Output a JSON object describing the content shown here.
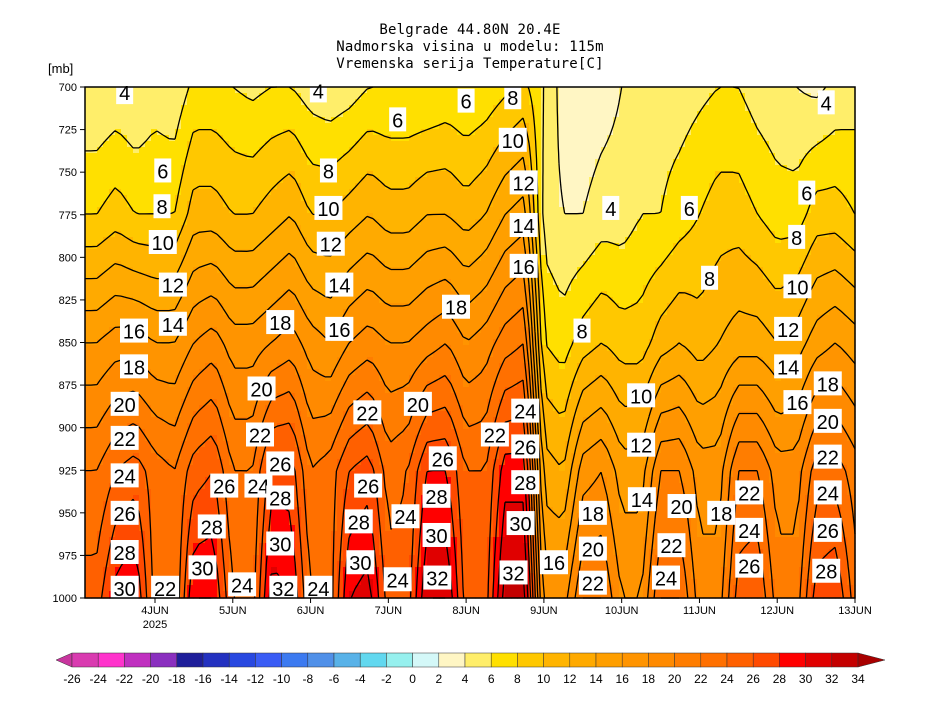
{
  "chart_data": {
    "type": "heatmap",
    "subtype": "time-height filled contour",
    "title_lines": [
      "Belgrade  44.80N 20.4E",
      "Nadmorska visina u modelu: 115m",
      "Vremenska serija Temperature[C]"
    ],
    "ylabel": "[mb]",
    "xlabel": "",
    "y_ticks": [
      700,
      725,
      750,
      775,
      800,
      825,
      850,
      875,
      900,
      925,
      950,
      975,
      1000
    ],
    "ylim": [
      700,
      1000
    ],
    "y_inverted": true,
    "time_units": "days since 4JUN2025 00Z",
    "xlim": [
      -0.9,
      9.0
    ],
    "x_ticks": [
      {
        "t": 0,
        "label": "4JUN",
        "sublabel": "2025"
      },
      {
        "t": 1,
        "label": "5JUN"
      },
      {
        "t": 2,
        "label": "6JUN"
      },
      {
        "t": 3,
        "label": "7JUN"
      },
      {
        "t": 4,
        "label": "8JUN"
      },
      {
        "t": 5,
        "label": "9JUN"
      },
      {
        "t": 6,
        "label": "10JUN"
      },
      {
        "t": 7,
        "label": "11JUN"
      },
      {
        "t": 8,
        "label": "12JUN"
      },
      {
        "t": 9,
        "label": "13JUN"
      }
    ],
    "levels": [
      700,
      775,
      850,
      925,
      1000
    ],
    "times": [
      -1.0,
      -0.75,
      -0.5,
      -0.25,
      0,
      0.25,
      0.5,
      0.75,
      1,
      1.25,
      1.5,
      1.75,
      2,
      2.25,
      2.5,
      2.75,
      3,
      3.25,
      3.5,
      3.75,
      4,
      4.25,
      4.5,
      4.75,
      5,
      5.25,
      5.5,
      5.75,
      6,
      6.25,
      6.5,
      6.75,
      7,
      7.25,
      7.5,
      7.75,
      8,
      8.25,
      8.5,
      8.75,
      9
    ],
    "temperature": [
      [
        4,
        8,
        16,
        22,
        25
      ],
      [
        4,
        8,
        16,
        22,
        25
      ],
      [
        4.5,
        9,
        17,
        24,
        29
      ],
      [
        4,
        8,
        17,
        25,
        30
      ],
      [
        5,
        8,
        16,
        23,
        23
      ],
      [
        4.5,
        8,
        16,
        22,
        22
      ],
      [
        6.5,
        11,
        18,
        25,
        30
      ],
      [
        6.5,
        11,
        19,
        26,
        30
      ],
      [
        6,
        10,
        17,
        22,
        24
      ],
      [
        5.5,
        10,
        17,
        22,
        23
      ],
      [
        6,
        11,
        18,
        27,
        31
      ],
      [
        6,
        12,
        19,
        27,
        30
      ],
      [
        5,
        10,
        17,
        22,
        24
      ],
      [
        4.5,
        10,
        16,
        23,
        23
      ],
      [
        5,
        11,
        18,
        26,
        30
      ],
      [
        6,
        12,
        19,
        27,
        31
      ],
      [
        6,
        11,
        18,
        23,
        25
      ],
      [
        6,
        11,
        18,
        24,
        25
      ],
      [
        6,
        12,
        19,
        28,
        32
      ],
      [
        6.5,
        12,
        20,
        28,
        32
      ],
      [
        6,
        11,
        18,
        24,
        25
      ],
      [
        6.5,
        12,
        19,
        24,
        25
      ],
      [
        7.5,
        14,
        21,
        29,
        33
      ],
      [
        8.5,
        15,
        22,
        29,
        33
      ],
      [
        6,
        5,
        8,
        13,
        17
      ],
      [
        3,
        4,
        7,
        12,
        17
      ],
      [
        2.5,
        4,
        9,
        17,
        22
      ],
      [
        3,
        5,
        10,
        18,
        22
      ],
      [
        4,
        5,
        9,
        15,
        18
      ],
      [
        5,
        6,
        9,
        15,
        18
      ],
      [
        5,
        6,
        11,
        20,
        24
      ],
      [
        5,
        7,
        12,
        20,
        24
      ],
      [
        5.5,
        8,
        11,
        17,
        19
      ],
      [
        6,
        9,
        12,
        17,
        19
      ],
      [
        6,
        9,
        13,
        22,
        25
      ],
      [
        5,
        8,
        13,
        22,
        26
      ],
      [
        4.5,
        7,
        12,
        19,
        21
      ],
      [
        4,
        7,
        13,
        19,
        21
      ],
      [
        3.5,
        9,
        15,
        23,
        27
      ],
      [
        4.5,
        9,
        16,
        23,
        28
      ],
      [
        5,
        8,
        15,
        21,
        23
      ]
    ],
    "contour_levels": [
      4,
      6,
      8,
      10,
      12,
      14,
      16,
      18,
      20,
      22,
      24,
      26,
      28,
      30,
      32
    ],
    "contour_labels": [
      {
        "v": "4",
        "t": -0.39,
        "p": 703
      },
      {
        "v": "4",
        "t": 2.1,
        "p": 702
      },
      {
        "v": "6",
        "t": 4.0,
        "p": 708
      },
      {
        "v": "8",
        "t": 4.6,
        "p": 706
      },
      {
        "v": "6",
        "t": 3.12,
        "p": 719
      },
      {
        "v": "6",
        "t": 0.1,
        "p": 749
      },
      {
        "v": "8",
        "t": 2.23,
        "p": 749
      },
      {
        "v": "10",
        "t": 4.6,
        "p": 731
      },
      {
        "v": "12",
        "t": 4.74,
        "p": 756
      },
      {
        "v": "4",
        "t": 5.86,
        "p": 771
      },
      {
        "v": "6",
        "t": 6.87,
        "p": 771
      },
      {
        "v": "8",
        "t": 0.09,
        "p": 770
      },
      {
        "v": "10",
        "t": 2.23,
        "p": 771
      },
      {
        "v": "14",
        "t": 4.74,
        "p": 781
      },
      {
        "v": "10",
        "t": 0.1,
        "p": 791
      },
      {
        "v": "12",
        "t": 2.26,
        "p": 792
      },
      {
        "v": "16",
        "t": 4.74,
        "p": 805
      },
      {
        "v": "8",
        "t": 7.13,
        "p": 812
      },
      {
        "v": "8",
        "t": 8.25,
        "p": 788
      },
      {
        "v": "6",
        "t": 8.38,
        "p": 762
      },
      {
        "v": "4",
        "t": 8.63,
        "p": 709
      },
      {
        "v": "10",
        "t": 8.26,
        "p": 817
      },
      {
        "v": "12",
        "t": 0.23,
        "p": 816
      },
      {
        "v": "14",
        "t": 2.37,
        "p": 816
      },
      {
        "v": "18",
        "t": 3.87,
        "p": 829
      },
      {
        "v": "16",
        "t": -0.27,
        "p": 843
      },
      {
        "v": "14",
        "t": 0.23,
        "p": 839
      },
      {
        "v": "18",
        "t": 1.61,
        "p": 838
      },
      {
        "v": "16",
        "t": 2.37,
        "p": 842
      },
      {
        "v": "8",
        "t": 5.49,
        "p": 843
      },
      {
        "v": "12",
        "t": 8.14,
        "p": 842
      },
      {
        "v": "18",
        "t": -0.27,
        "p": 864
      },
      {
        "v": "14",
        "t": 8.14,
        "p": 864
      },
      {
        "v": "20",
        "t": 1.37,
        "p": 877
      },
      {
        "v": "18",
        "t": 8.65,
        "p": 874
      },
      {
        "v": "20",
        "t": -0.39,
        "p": 886
      },
      {
        "v": "22",
        "t": 2.73,
        "p": 891
      },
      {
        "v": "20",
        "t": 3.38,
        "p": 886
      },
      {
        "v": "16",
        "t": 8.26,
        "p": 885
      },
      {
        "v": "10",
        "t": 6.25,
        "p": 881
      },
      {
        "v": "24",
        "t": 4.76,
        "p": 890
      },
      {
        "v": "20",
        "t": 8.65,
        "p": 896
      },
      {
        "v": "22",
        "t": -0.39,
        "p": 906
      },
      {
        "v": "22",
        "t": 1.35,
        "p": 904
      },
      {
        "v": "22",
        "t": 4.37,
        "p": 904
      },
      {
        "v": "26",
        "t": 4.76,
        "p": 911
      },
      {
        "v": "12",
        "t": 6.25,
        "p": 910
      },
      {
        "v": "22",
        "t": 8.65,
        "p": 917
      },
      {
        "v": "26",
        "t": 1.61,
        "p": 921
      },
      {
        "v": "26",
        "t": 3.7,
        "p": 918
      },
      {
        "v": "24",
        "t": -0.39,
        "p": 928
      },
      {
        "v": "26",
        "t": 0.89,
        "p": 934
      },
      {
        "v": "24",
        "t": 1.33,
        "p": 934
      },
      {
        "v": "26",
        "t": 2.74,
        "p": 934
      },
      {
        "v": "28",
        "t": 1.61,
        "p": 941
      },
      {
        "v": "28",
        "t": 4.76,
        "p": 932
      },
      {
        "v": "28",
        "t": 3.62,
        "p": 940
      },
      {
        "v": "24",
        "t": 3.22,
        "p": 952
      },
      {
        "v": "14",
        "t": 6.26,
        "p": 942
      },
      {
        "v": "20",
        "t": 6.77,
        "p": 946
      },
      {
        "v": "18",
        "t": 7.28,
        "p": 950
      },
      {
        "v": "22",
        "t": 7.64,
        "p": 938
      },
      {
        "v": "24",
        "t": 8.65,
        "p": 938
      },
      {
        "v": "26",
        "t": -0.39,
        "p": 950
      },
      {
        "v": "28",
        "t": 0.73,
        "p": 958
      },
      {
        "v": "30",
        "t": 1.61,
        "p": 968
      },
      {
        "v": "30",
        "t": 3.62,
        "p": 963
      },
      {
        "v": "28",
        "t": 2.62,
        "p": 955
      },
      {
        "v": "30",
        "t": 4.7,
        "p": 956
      },
      {
        "v": "18",
        "t": 5.63,
        "p": 950
      },
      {
        "v": "24",
        "t": 7.64,
        "p": 960
      },
      {
        "v": "26",
        "t": 8.65,
        "p": 960
      },
      {
        "v": "28",
        "t": -0.39,
        "p": 973
      },
      {
        "v": "30",
        "t": 0.61,
        "p": 982
      },
      {
        "v": "30",
        "t": 2.64,
        "p": 979
      },
      {
        "v": "16",
        "t": 5.13,
        "p": 979
      },
      {
        "v": "20",
        "t": 5.63,
        "p": 971
      },
      {
        "v": "22",
        "t": 6.64,
        "p": 969
      },
      {
        "v": "22",
        "t": 0.13,
        "p": 994
      },
      {
        "v": "30",
        "t": -0.39,
        "p": 994
      },
      {
        "v": "24",
        "t": 1.12,
        "p": 992
      },
      {
        "v": "32",
        "t": 1.65,
        "p": 994
      },
      {
        "v": "24",
        "t": 2.1,
        "p": 994
      },
      {
        "v": "24",
        "t": 3.12,
        "p": 989
      },
      {
        "v": "32",
        "t": 3.63,
        "p": 988
      },
      {
        "v": "32",
        "t": 4.61,
        "p": 985
      },
      {
        "v": "22",
        "t": 5.63,
        "p": 991
      },
      {
        "v": "24",
        "t": 6.57,
        "p": 988
      },
      {
        "v": "26",
        "t": 7.64,
        "p": 981
      },
      {
        "v": "28",
        "t": 8.63,
        "p": 984
      }
    ],
    "colorbar": {
      "bounds": [
        -26,
        -24,
        -22,
        -20,
        -18,
        -16,
        -14,
        -12,
        -10,
        -8,
        -6,
        -4,
        -2,
        0,
        2,
        4,
        6,
        8,
        10,
        12,
        14,
        16,
        18,
        20,
        22,
        24,
        26,
        28,
        30,
        32,
        34
      ],
      "colors": [
        "#c8359e",
        "#d93bb0",
        "#ff33cc",
        "#c030c0",
        "#8a2fbf",
        "#1e1e9a",
        "#2331c0",
        "#2848e0",
        "#3a5cf5",
        "#3c7af0",
        "#5090e8",
        "#58b2e8",
        "#62d8ef",
        "#96f0ee",
        "#d4f8f8",
        "#fff6c4",
        "#ffee6a",
        "#ffe000",
        "#ffc800",
        "#ffb400",
        "#ffaa00",
        "#ff9f00",
        "#ff9400",
        "#ff8a00",
        "#ff7d00",
        "#ff7000",
        "#ff6000",
        "#ff4a00",
        "#ff0000",
        "#e00000",
        "#c40000",
        "#a80000"
      ],
      "extend": "both"
    }
  }
}
